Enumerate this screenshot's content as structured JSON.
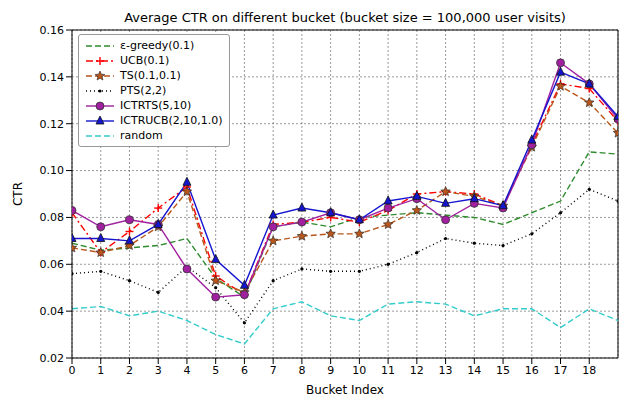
{
  "chart_data": {
    "type": "line",
    "title": "Average CTR on different bucket (bucket size = 100,000 user visits)",
    "x_label": "Bucket Index",
    "y_label": "CTR",
    "x": [
      0,
      1,
      2,
      3,
      4,
      5,
      6,
      7,
      8,
      9,
      10,
      11,
      12,
      13,
      14,
      15,
      16,
      17,
      18,
      19
    ],
    "xlim": [
      0,
      19
    ],
    "xticks": [
      0,
      1,
      2,
      3,
      4,
      5,
      6,
      7,
      8,
      9,
      10,
      11,
      12,
      13,
      14,
      15,
      16,
      17,
      18
    ],
    "ylim": [
      0.02,
      0.16
    ],
    "yticks": [
      0.02,
      0.04,
      0.06,
      0.08,
      {
        "value": 0.1,
        "label": "0.10"
      },
      0.12,
      0.14,
      0.16
    ],
    "grid": true,
    "legend": "upper left",
    "series": [
      {
        "name": "ε-greedy(0.1)",
        "color": "#2e8b2e",
        "marker": "none",
        "line_style": "dashed",
        "values": [
          0.069,
          0.066,
          0.067,
          0.068,
          0.071,
          0.054,
          0.046,
          0.076,
          0.078,
          0.076,
          0.08,
          0.081,
          0.082,
          0.081,
          0.08,
          0.077,
          0.082,
          0.087,
          0.108,
          0.107
        ]
      },
      {
        "name": "UCB(0.1)",
        "color": "#ff0000",
        "marker": "plus",
        "line_style": "dashdot",
        "values": [
          0.082,
          0.065,
          0.074,
          0.084,
          0.093,
          0.055,
          0.047,
          0.077,
          0.078,
          0.08,
          0.078,
          0.083,
          0.09,
          0.091,
          0.09,
          0.085,
          0.111,
          0.137,
          0.135,
          0.121
        ]
      },
      {
        "name": "TS(0.1,0.1)",
        "color": "#b8561b",
        "marker": "star",
        "line_style": "dashed",
        "values": [
          0.067,
          0.065,
          0.068,
          0.076,
          0.091,
          0.053,
          0.048,
          0.07,
          0.072,
          0.073,
          0.073,
          0.077,
          0.083,
          0.091,
          0.089,
          0.085,
          0.11,
          0.136,
          0.129,
          0.116
        ]
      },
      {
        "name": "PTS(2,2)",
        "color": "#000000",
        "marker": "dot",
        "line_style": "dotted",
        "values": [
          0.056,
          0.057,
          0.053,
          0.048,
          0.059,
          0.05,
          0.035,
          0.053,
          0.058,
          0.057,
          0.057,
          0.06,
          0.065,
          0.071,
          0.069,
          0.068,
          0.073,
          0.082,
          0.092,
          0.087
        ]
      },
      {
        "name": "ICTRTS(5,10)",
        "color": "#a020a0",
        "marker": "circle",
        "line_style": "solid",
        "values": [
          0.083,
          0.076,
          0.079,
          0.077,
          0.058,
          0.046,
          0.047,
          0.076,
          0.078,
          0.082,
          0.079,
          0.084,
          0.088,
          0.079,
          0.086,
          0.084,
          0.111,
          0.146,
          0.137,
          0.122
        ]
      },
      {
        "name": "ICTRUCB(2,10,1.0)",
        "color": "#1515d0",
        "marker": "triangle",
        "line_style": "solid",
        "values": [
          0.071,
          0.071,
          0.07,
          0.077,
          0.095,
          0.062,
          0.051,
          0.081,
          0.084,
          0.082,
          0.079,
          0.087,
          0.089,
          0.086,
          0.088,
          0.085,
          0.113,
          0.142,
          0.137,
          0.123
        ]
      },
      {
        "name": "random",
        "color": "#33cccc",
        "marker": "none",
        "line_style": "dashed",
        "values": [
          0.041,
          0.042,
          0.038,
          0.04,
          0.036,
          0.03,
          0.026,
          0.041,
          0.044,
          0.038,
          0.036,
          0.043,
          0.044,
          0.043,
          0.038,
          0.041,
          0.041,
          0.033,
          0.041,
          0.036
        ]
      }
    ]
  }
}
